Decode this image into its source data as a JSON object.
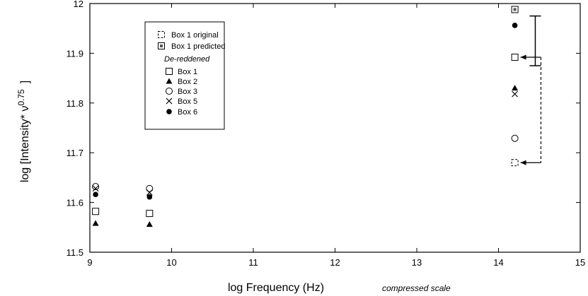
{
  "chart_data": {
    "type": "scatter",
    "title": "",
    "xlabel": "log Frequency (Hz)",
    "xlabel_note": "compressed scale",
    "ylabel": "log [Intensity* ν",
    "ylabel_exponent": "0.75",
    "ylabel_close": "]",
    "xlim": [
      9,
      15
    ],
    "ylim": [
      11.5,
      12
    ],
    "x_ticks": [
      "9",
      "10",
      "11",
      "12",
      "13",
      "14",
      "15"
    ],
    "y_ticks": [
      "11.5",
      "11.6",
      "11.7",
      "11.8",
      "11.9",
      "12"
    ],
    "grid": false,
    "legend": {
      "placement": "upper-left",
      "heading": "De-reddened",
      "entries": [
        "Box 1 original",
        "Box 1 predicted",
        "Box 1",
        "Box 2",
        "Box 3",
        "Box 5",
        "Box 6"
      ]
    },
    "series": [
      {
        "name": "Box 1 original",
        "marker": "dashed-square",
        "points": [
          [
            14.2,
            11.68
          ]
        ]
      },
      {
        "name": "Box 1 predicted",
        "marker": "double-square",
        "points": [
          [
            14.2,
            11.988
          ]
        ]
      },
      {
        "name": "Box 1",
        "marker": "open-square",
        "points": [
          [
            9.07,
            11.582
          ],
          [
            9.73,
            11.578
          ],
          [
            14.2,
            11.892
          ]
        ]
      },
      {
        "name": "Box 2",
        "marker": "filled-triangle",
        "points": [
          [
            9.07,
            11.558
          ],
          [
            9.73,
            11.556
          ],
          [
            14.2,
            11.83
          ]
        ]
      },
      {
        "name": "Box 3",
        "marker": "open-circle",
        "points": [
          [
            9.07,
            11.632
          ],
          [
            9.73,
            11.628
          ],
          [
            14.2,
            11.729
          ]
        ]
      },
      {
        "name": "Box 5",
        "marker": "x-cross",
        "points": [
          [
            9.07,
            11.628
          ],
          [
            9.73,
            11.62
          ],
          [
            14.2,
            11.818
          ]
        ]
      },
      {
        "name": "Box 6",
        "marker": "filled-circle",
        "points": [
          [
            9.07,
            11.616
          ],
          [
            9.73,
            11.611
          ],
          [
            14.2,
            11.956
          ]
        ]
      }
    ],
    "error_bar": {
      "x": 14.45,
      "y_low": 11.875,
      "y_high": 11.975
    },
    "annotation_arrow": {
      "from": [
        14.45,
        11.892
      ],
      "to": [
        14.2,
        11.68
      ],
      "style": "dashed"
    }
  }
}
